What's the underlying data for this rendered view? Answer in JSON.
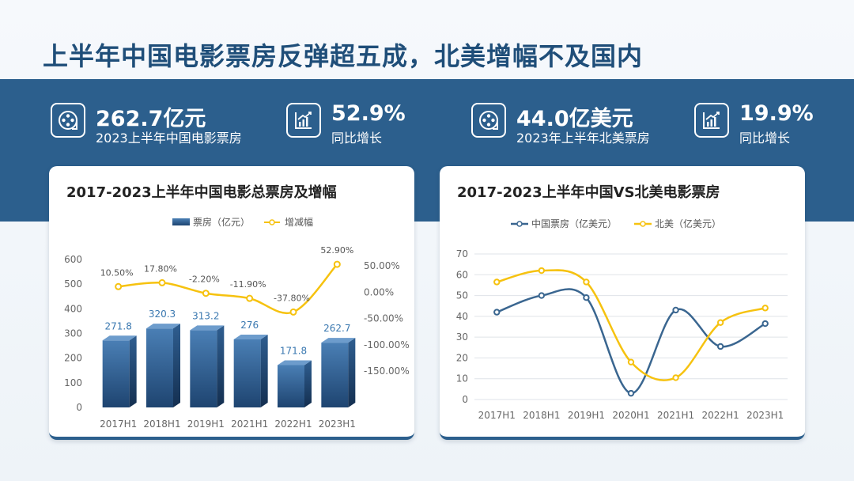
{
  "header": {
    "title": "上半年中国电影票房反弹超五成，北美增幅不及国内"
  },
  "kpis": [
    {
      "value": "262.7亿元",
      "label": "2023上半年中国电影票房",
      "icon": "film-reel-icon"
    },
    {
      "value": "52.9%",
      "label": "同比增长",
      "icon": "growth-chart-icon"
    },
    {
      "value": "44.0亿美元",
      "label": "2023年上半年北美票房",
      "icon": "film-reel-icon"
    },
    {
      "value": "19.9%",
      "label": "同比增长",
      "icon": "growth-chart-icon"
    }
  ],
  "colors": {
    "bar": "#2e5b8c",
    "china_line": "#3a6690",
    "na_line": "#f6c20f",
    "band": "#2c5f8d",
    "title": "#1f4e79"
  },
  "chart_data": [
    {
      "type": "bar",
      "title": "2017-2023上半年中国电影总票房及增幅",
      "categories": [
        "2017H1",
        "2018H1",
        "2019H1",
        "2021H1",
        "2022H1",
        "2023H1"
      ],
      "series": [
        {
          "name": "票房（亿元）",
          "type": "bar",
          "values": [
            271.8,
            320.3,
            313.2,
            276,
            171.8,
            262.7
          ],
          "labels": [
            "271.8",
            "320.3",
            "313.2",
            "276",
            "171.8",
            "262.7"
          ]
        },
        {
          "name": "增减幅",
          "type": "line",
          "values": [
            10.5,
            17.8,
            -2.2,
            -11.9,
            -37.8,
            52.9
          ],
          "labels": [
            "10.50%",
            "17.80%",
            "-2.20%",
            "-11.90%",
            "-37.80%",
            "52.90%"
          ]
        }
      ],
      "y_left": {
        "ticks": [
          "0",
          "100",
          "200",
          "300",
          "400",
          "500",
          "600"
        ],
        "range": [
          0,
          600
        ]
      },
      "y_right": {
        "ticks": [
          "-150.00%",
          "-100.00%",
          "-50.00%",
          "0.00%",
          "50.00%"
        ],
        "range": [
          -150,
          50
        ]
      },
      "legend": "top"
    },
    {
      "type": "line",
      "title": "2017-2023上半年中国VS北美电影票房",
      "categories": [
        "2017H1",
        "2018H1",
        "2019H1",
        "2020H1",
        "2021H1",
        "2022H1",
        "2023H1"
      ],
      "series": [
        {
          "name": "中国票房（亿美元）",
          "values": [
            42,
            50,
            49,
            3,
            43,
            25.5,
            36.5
          ]
        },
        {
          "name": "北美（亿美元）",
          "values": [
            56.5,
            62,
            56.5,
            18,
            10.5,
            37,
            44
          ]
        }
      ],
      "y": {
        "ticks": [
          "0",
          "10",
          "20",
          "30",
          "40",
          "50",
          "60",
          "70"
        ],
        "range": [
          0,
          70
        ]
      },
      "grid": true,
      "legend": "top"
    }
  ]
}
